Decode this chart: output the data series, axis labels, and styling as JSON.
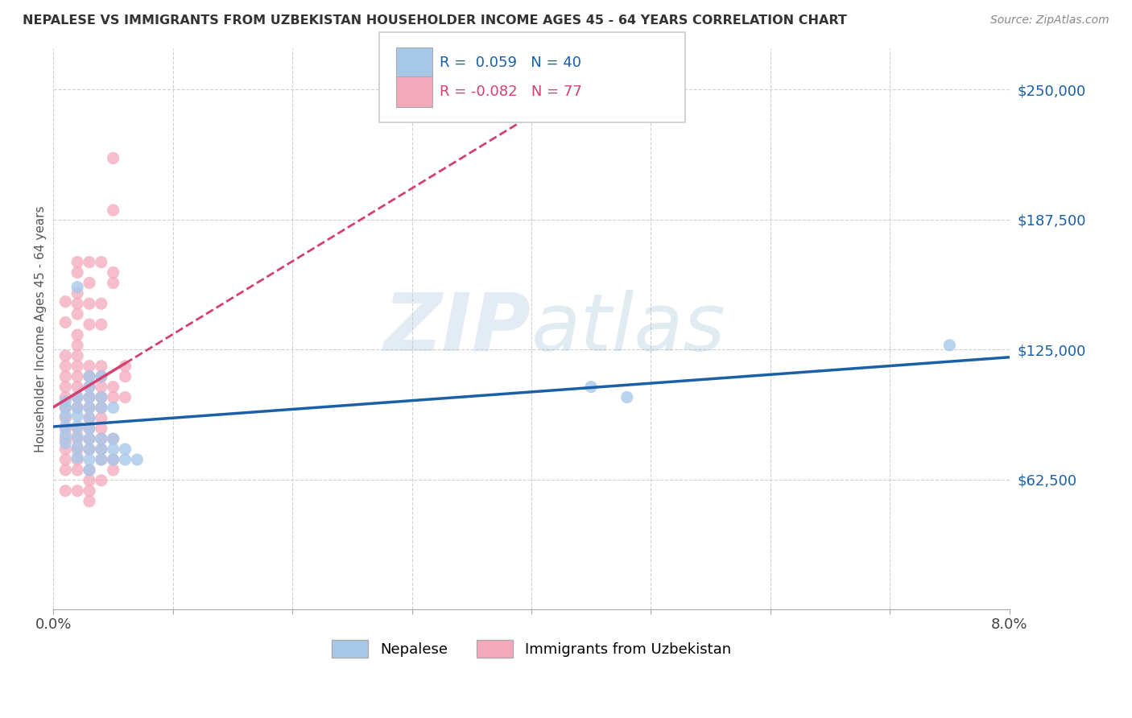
{
  "title": "NEPALESE VS IMMIGRANTS FROM UZBEKISTAN HOUSEHOLDER INCOME AGES 45 - 64 YEARS CORRELATION CHART",
  "source": "Source: ZipAtlas.com",
  "ylabel": "Householder Income Ages 45 - 64 years",
  "ytick_labels": [
    "$62,500",
    "$125,000",
    "$187,500",
    "$250,000"
  ],
  "ytick_values": [
    62500,
    125000,
    187500,
    250000
  ],
  "ylim": [
    0,
    270000
  ],
  "xlim": [
    0.0,
    0.08
  ],
  "watermark": "ZIPatlas",
  "legend_blue_R": "0.059",
  "legend_blue_N": "40",
  "legend_pink_R": "-0.082",
  "legend_pink_N": "77",
  "blue_color": "#a8c8e8",
  "pink_color": "#f4a8bc",
  "blue_line_color": "#1a5fa8",
  "pink_line_color": "#d44070",
  "nepalese_points": [
    [
      0.001,
      100000
    ],
    [
      0.001,
      97000
    ],
    [
      0.001,
      93000
    ],
    [
      0.001,
      88000
    ],
    [
      0.001,
      84000
    ],
    [
      0.001,
      80000
    ],
    [
      0.002,
      155000
    ],
    [
      0.002,
      102000
    ],
    [
      0.002,
      97000
    ],
    [
      0.002,
      93000
    ],
    [
      0.002,
      88000
    ],
    [
      0.002,
      83000
    ],
    [
      0.002,
      78000
    ],
    [
      0.002,
      73000
    ],
    [
      0.003,
      112000
    ],
    [
      0.003,
      107000
    ],
    [
      0.003,
      102000
    ],
    [
      0.003,
      97000
    ],
    [
      0.003,
      92000
    ],
    [
      0.003,
      87000
    ],
    [
      0.003,
      82000
    ],
    [
      0.003,
      77000
    ],
    [
      0.003,
      72000
    ],
    [
      0.003,
      67000
    ],
    [
      0.004,
      112000
    ],
    [
      0.004,
      102000
    ],
    [
      0.004,
      97000
    ],
    [
      0.004,
      82000
    ],
    [
      0.004,
      77000
    ],
    [
      0.004,
      72000
    ],
    [
      0.005,
      97000
    ],
    [
      0.005,
      82000
    ],
    [
      0.005,
      77000
    ],
    [
      0.005,
      72000
    ],
    [
      0.006,
      77000
    ],
    [
      0.006,
      72000
    ],
    [
      0.007,
      72000
    ],
    [
      0.045,
      107000
    ],
    [
      0.048,
      102000
    ],
    [
      0.075,
      127000
    ]
  ],
  "uzbek_points": [
    [
      0.001,
      148000
    ],
    [
      0.001,
      138000
    ],
    [
      0.001,
      122000
    ],
    [
      0.001,
      117000
    ],
    [
      0.001,
      112000
    ],
    [
      0.001,
      107000
    ],
    [
      0.001,
      102000
    ],
    [
      0.001,
      97000
    ],
    [
      0.001,
      92000
    ],
    [
      0.001,
      87000
    ],
    [
      0.001,
      82000
    ],
    [
      0.001,
      77000
    ],
    [
      0.001,
      72000
    ],
    [
      0.001,
      67000
    ],
    [
      0.001,
      57000
    ],
    [
      0.002,
      167000
    ],
    [
      0.002,
      162000
    ],
    [
      0.002,
      152000
    ],
    [
      0.002,
      147000
    ],
    [
      0.002,
      142000
    ],
    [
      0.002,
      132000
    ],
    [
      0.002,
      127000
    ],
    [
      0.002,
      122000
    ],
    [
      0.002,
      117000
    ],
    [
      0.002,
      112000
    ],
    [
      0.002,
      107000
    ],
    [
      0.002,
      102000
    ],
    [
      0.002,
      97000
    ],
    [
      0.002,
      87000
    ],
    [
      0.002,
      82000
    ],
    [
      0.002,
      77000
    ],
    [
      0.002,
      72000
    ],
    [
      0.002,
      67000
    ],
    [
      0.002,
      57000
    ],
    [
      0.003,
      167000
    ],
    [
      0.003,
      157000
    ],
    [
      0.003,
      147000
    ],
    [
      0.003,
      137000
    ],
    [
      0.003,
      117000
    ],
    [
      0.003,
      112000
    ],
    [
      0.003,
      107000
    ],
    [
      0.003,
      102000
    ],
    [
      0.003,
      97000
    ],
    [
      0.003,
      92000
    ],
    [
      0.003,
      87000
    ],
    [
      0.003,
      82000
    ],
    [
      0.003,
      77000
    ],
    [
      0.003,
      67000
    ],
    [
      0.003,
      62000
    ],
    [
      0.003,
      57000
    ],
    [
      0.003,
      52000
    ],
    [
      0.004,
      167000
    ],
    [
      0.004,
      147000
    ],
    [
      0.004,
      137000
    ],
    [
      0.004,
      117000
    ],
    [
      0.004,
      112000
    ],
    [
      0.004,
      107000
    ],
    [
      0.004,
      102000
    ],
    [
      0.004,
      97000
    ],
    [
      0.004,
      92000
    ],
    [
      0.004,
      87000
    ],
    [
      0.004,
      82000
    ],
    [
      0.004,
      77000
    ],
    [
      0.004,
      72000
    ],
    [
      0.004,
      62000
    ],
    [
      0.005,
      217000
    ],
    [
      0.005,
      192000
    ],
    [
      0.005,
      162000
    ],
    [
      0.005,
      157000
    ],
    [
      0.005,
      107000
    ],
    [
      0.005,
      102000
    ],
    [
      0.005,
      82000
    ],
    [
      0.005,
      72000
    ],
    [
      0.005,
      67000
    ],
    [
      0.006,
      117000
    ],
    [
      0.006,
      112000
    ],
    [
      0.006,
      102000
    ]
  ]
}
